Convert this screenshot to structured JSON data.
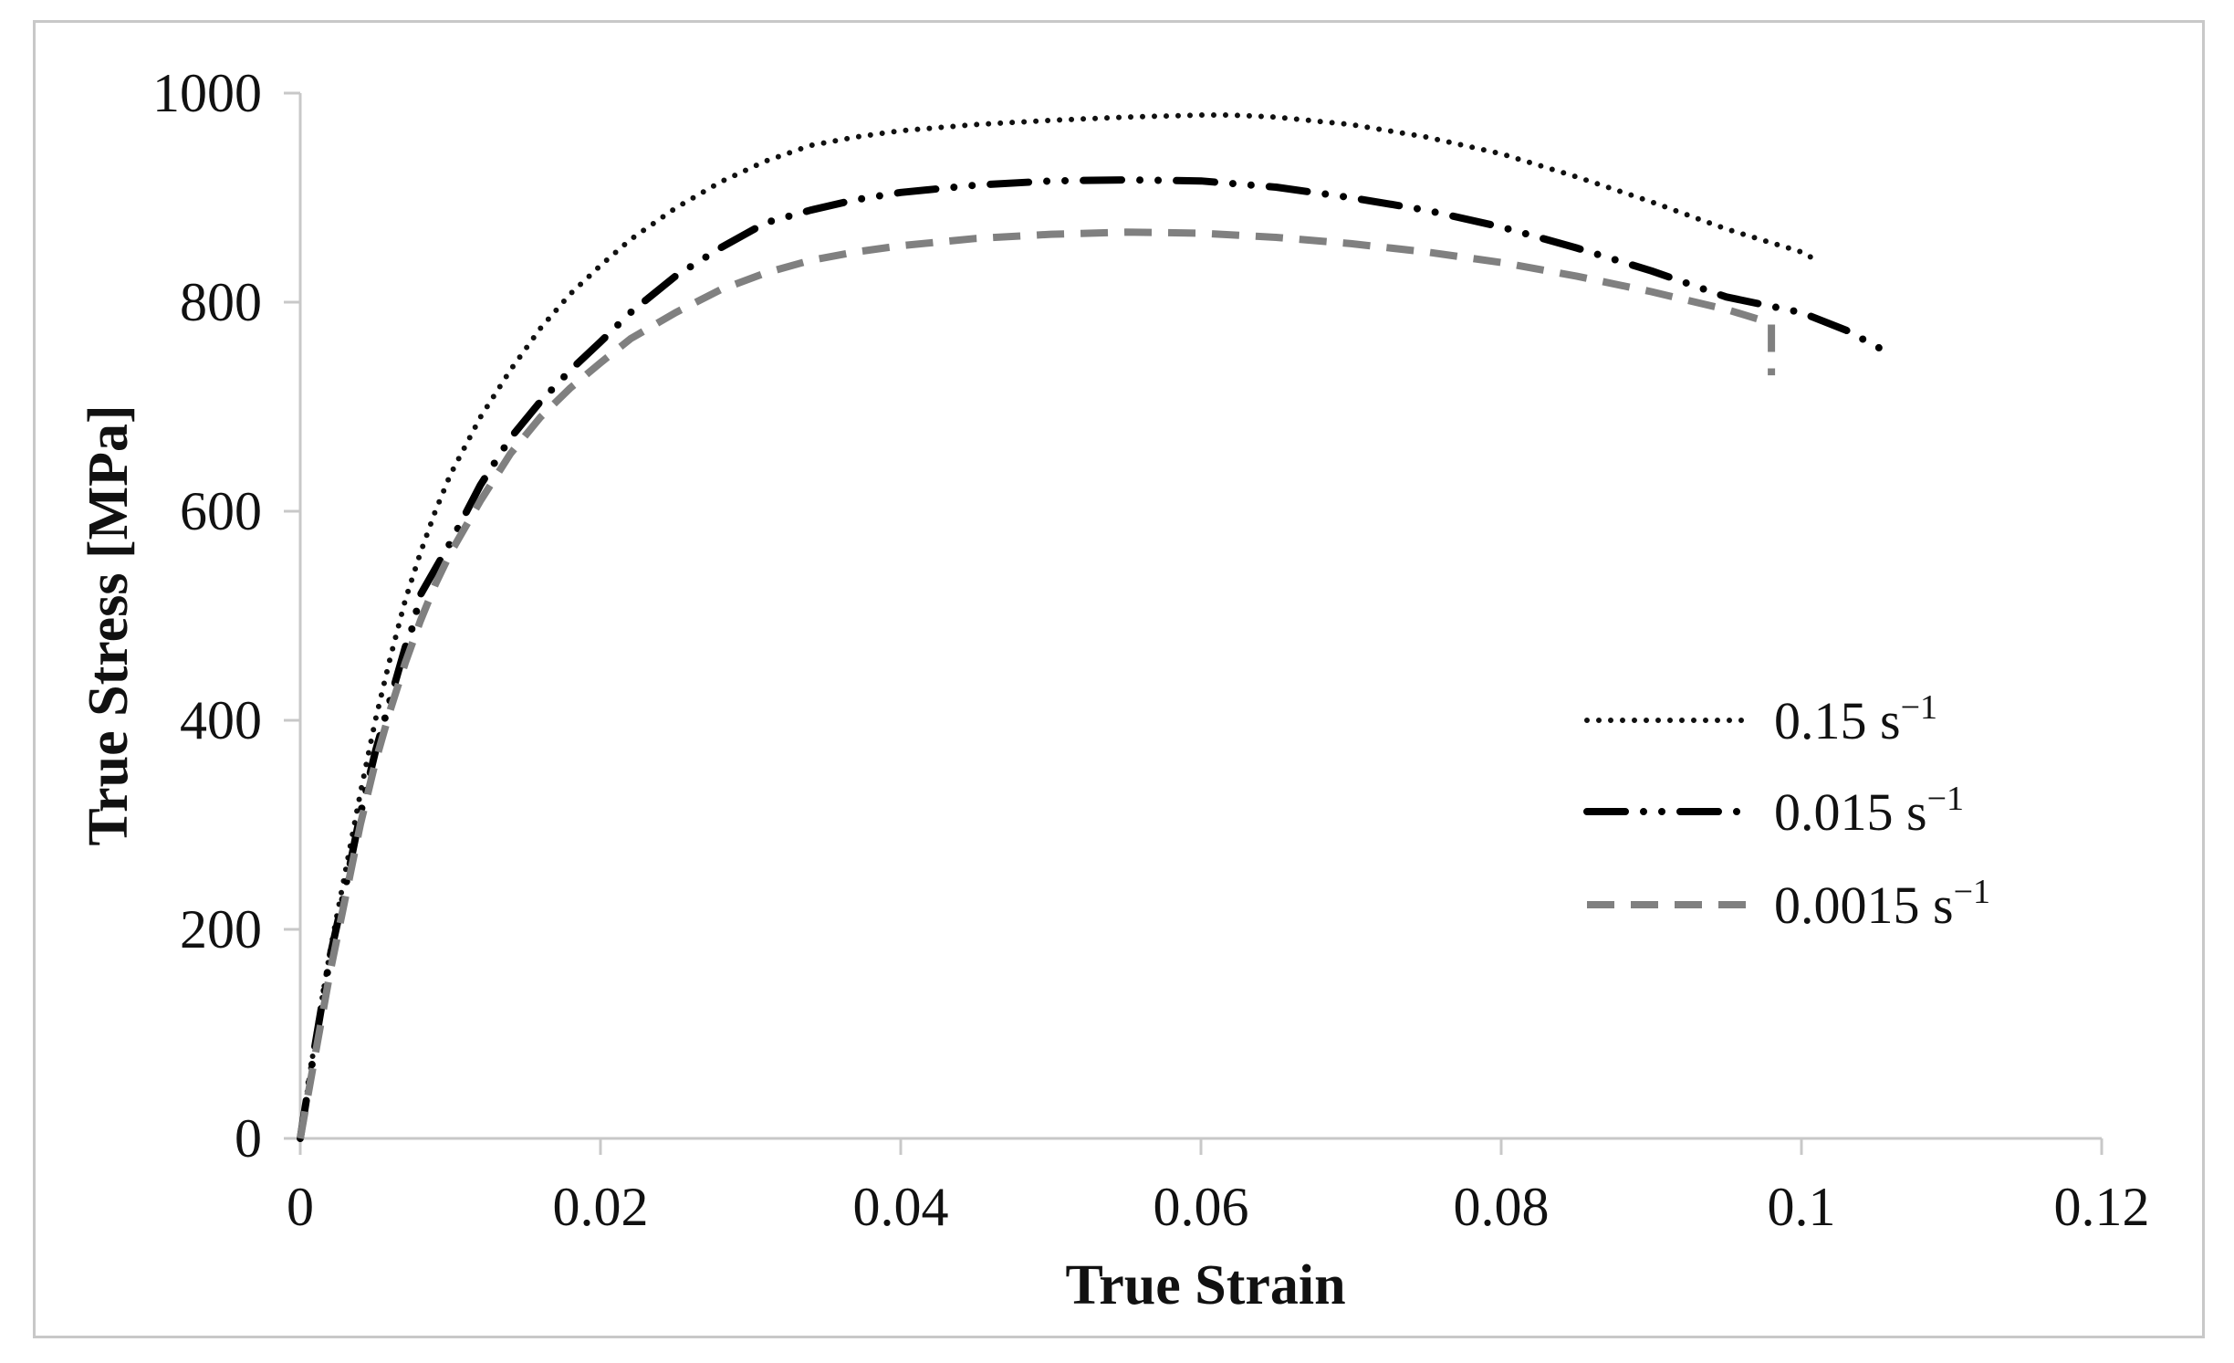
{
  "chart_data": {
    "type": "line",
    "title": "",
    "xlabel": "True Strain",
    "ylabel": "True Stress [MPa]",
    "xlim": [
      0,
      0.12
    ],
    "ylim": [
      0,
      1000
    ],
    "x_ticks": [
      "0",
      "0.02",
      "0.04",
      "0.06",
      "0.08",
      "0.1",
      "0.12"
    ],
    "y_ticks": [
      "0",
      "200",
      "400",
      "600",
      "800",
      "1000"
    ],
    "grid": false,
    "legend_position": "right",
    "series": [
      {
        "name": "0.15 s",
        "superscript": "−1",
        "color": "#111111",
        "line_style": "dotted",
        "x": [
          0,
          0.001,
          0.002,
          0.003,
          0.004,
          0.005,
          0.006,
          0.007,
          0.008,
          0.009,
          0.01,
          0.012,
          0.014,
          0.016,
          0.018,
          0.02,
          0.022,
          0.025,
          0.028,
          0.031,
          0.034,
          0.037,
          0.04,
          0.045,
          0.05,
          0.055,
          0.06,
          0.062,
          0.065,
          0.07,
          0.075,
          0.08,
          0.085,
          0.09,
          0.095,
          0.1,
          0.101
        ],
        "y": [
          0,
          95,
          180,
          255,
          330,
          400,
          460,
          515,
          560,
          600,
          635,
          690,
          735,
          775,
          808,
          835,
          860,
          890,
          915,
          935,
          950,
          958,
          964,
          970,
          974,
          977,
          979,
          979,
          977,
          970,
          958,
          942,
          920,
          896,
          870,
          848,
          840
        ]
      },
      {
        "name": "0.015 s",
        "superscript": "−1",
        "color": "#000000",
        "line_style": "dash-dot-dot",
        "x": [
          0,
          0.001,
          0.002,
          0.003,
          0.004,
          0.005,
          0.006,
          0.007,
          0.0075,
          0.008,
          0.009,
          0.01,
          0.012,
          0.014,
          0.016,
          0.018,
          0.02,
          0.022,
          0.025,
          0.028,
          0.031,
          0.032,
          0.034,
          0.037,
          0.04,
          0.045,
          0.05,
          0.055,
          0.06,
          0.065,
          0.07,
          0.075,
          0.08,
          0.085,
          0.09,
          0.095,
          0.1,
          0.103,
          0.106
        ],
        "y": [
          0,
          90,
          175,
          240,
          310,
          370,
          420,
          470,
          490,
          520,
          545,
          570,
          625,
          670,
          705,
          735,
          762,
          790,
          825,
          852,
          876,
          880,
          888,
          898,
          905,
          912,
          916,
          917,
          916,
          910,
          900,
          888,
          872,
          852,
          830,
          805,
          790,
          773,
          750
        ]
      },
      {
        "name": "0.0015 s",
        "superscript": "−1",
        "color": "#808080",
        "line_style": "dashed",
        "x": [
          0,
          0.001,
          0.002,
          0.003,
          0.004,
          0.005,
          0.006,
          0.007,
          0.008,
          0.009,
          0.01,
          0.012,
          0.014,
          0.016,
          0.018,
          0.02,
          0.022,
          0.025,
          0.028,
          0.031,
          0.034,
          0.037,
          0.04,
          0.045,
          0.05,
          0.055,
          0.06,
          0.065,
          0.07,
          0.075,
          0.08,
          0.085,
          0.09,
          0.095,
          0.098,
          0.098
        ],
        "y": [
          0,
          80,
          160,
          230,
          300,
          360,
          410,
          455,
          495,
          530,
          560,
          610,
          655,
          690,
          718,
          742,
          765,
          790,
          812,
          828,
          840,
          848,
          854,
          861,
          865,
          867,
          866,
          862,
          856,
          848,
          838,
          825,
          810,
          793,
          780,
          730
        ]
      }
    ]
  }
}
